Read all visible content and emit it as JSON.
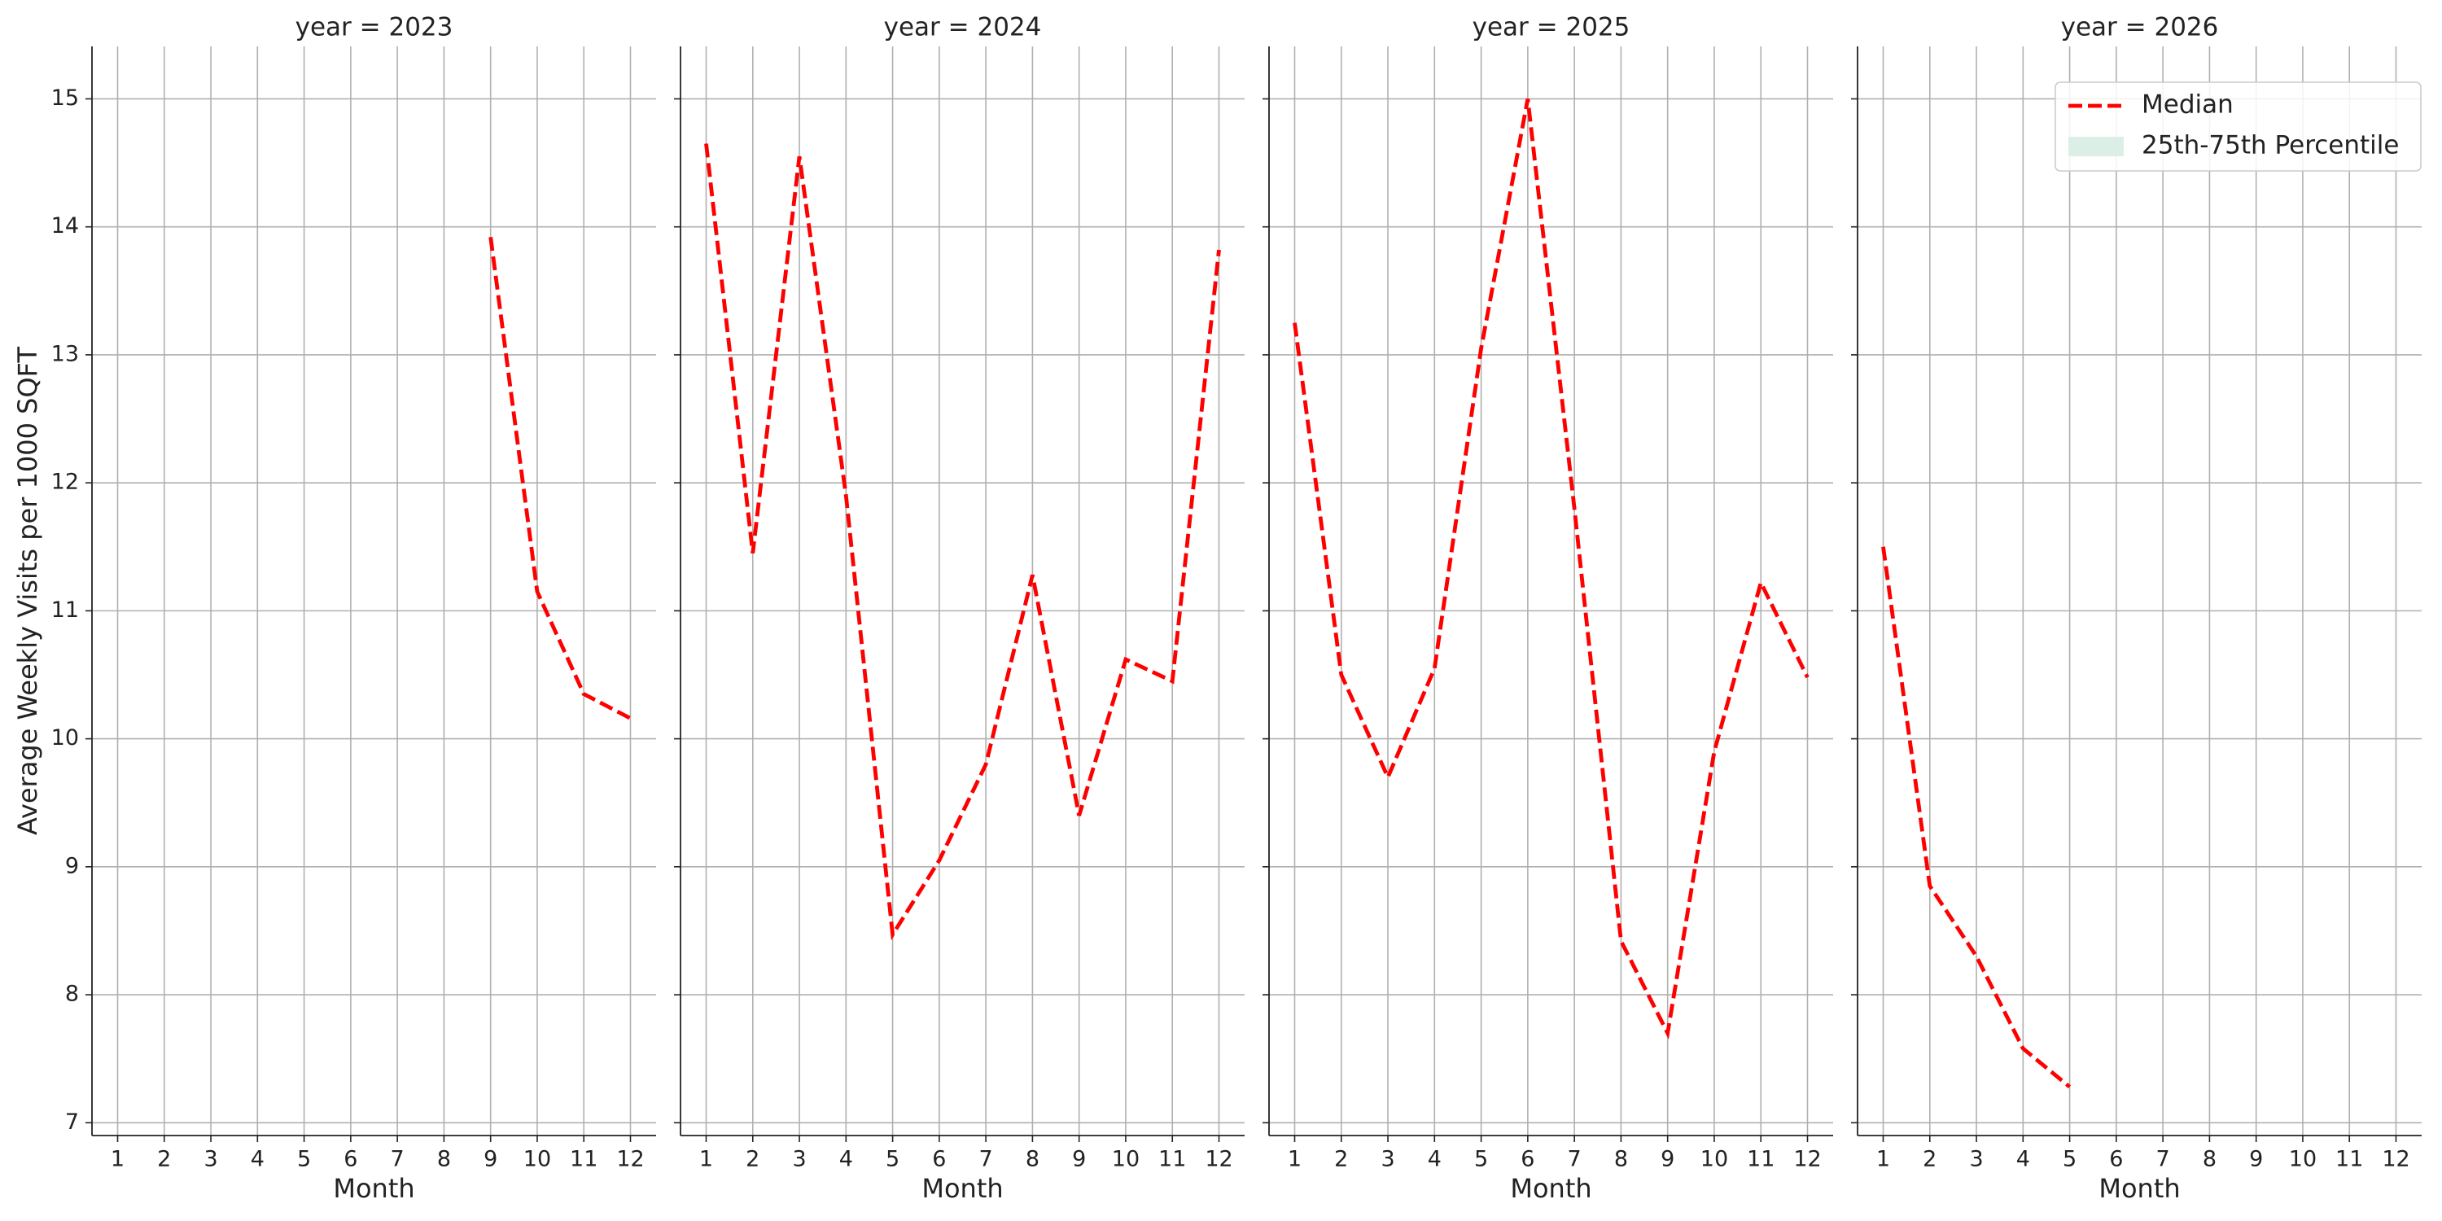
{
  "chart_data": [
    {
      "type": "line",
      "title": "year = 2023",
      "xlabel": "Month",
      "ylabel": "Average Weekly Visits per 1000 SQFT",
      "x": [
        1,
        2,
        3,
        4,
        5,
        6,
        7,
        8,
        9,
        10,
        11,
        12
      ],
      "series": [
        {
          "name": "Median",
          "color": "#ff0000",
          "values": [
            null,
            null,
            null,
            null,
            null,
            null,
            null,
            null,
            13.92,
            11.15,
            10.35,
            10.16
          ]
        }
      ],
      "xlim": [
        0.45,
        12.55
      ],
      "ylim": [
        6.9,
        15.41
      ],
      "xticks": [
        1,
        2,
        3,
        4,
        5,
        6,
        7,
        8,
        9,
        10,
        11,
        12
      ],
      "yticks": [
        7,
        8,
        9,
        10,
        11,
        12,
        13,
        14,
        15
      ],
      "grid": true
    },
    {
      "type": "line",
      "title": "year = 2024",
      "xlabel": "Month",
      "x": [
        1,
        2,
        3,
        4,
        5,
        6,
        7,
        8,
        9,
        10,
        11,
        12
      ],
      "series": [
        {
          "name": "Median",
          "color": "#ff0000",
          "values": [
            14.65,
            11.45,
            14.55,
            11.9,
            8.47,
            9.05,
            9.8,
            11.28,
            9.4,
            10.62,
            10.45,
            13.82
          ]
        }
      ],
      "xlim": [
        0.45,
        12.55
      ],
      "ylim": [
        6.9,
        15.41
      ],
      "xticks": [
        1,
        2,
        3,
        4,
        5,
        6,
        7,
        8,
        9,
        10,
        11,
        12
      ],
      "yticks": [
        7,
        8,
        9,
        10,
        11,
        12,
        13,
        14,
        15
      ],
      "grid": true
    },
    {
      "type": "line",
      "title": "year = 2025",
      "xlabel": "Month",
      "x": [
        1,
        2,
        3,
        4,
        5,
        6,
        7,
        8,
        9,
        10,
        11,
        12
      ],
      "series": [
        {
          "name": "Median",
          "color": "#ff0000",
          "values": [
            13.25,
            10.5,
            9.7,
            10.55,
            13.05,
            15.0,
            11.8,
            8.42,
            7.7,
            9.9,
            11.22,
            10.48
          ]
        }
      ],
      "xlim": [
        0.45,
        12.55
      ],
      "ylim": [
        6.9,
        15.41
      ],
      "xticks": [
        1,
        2,
        3,
        4,
        5,
        6,
        7,
        8,
        9,
        10,
        11,
        12
      ],
      "yticks": [
        7,
        8,
        9,
        10,
        11,
        12,
        13,
        14,
        15
      ],
      "grid": true
    },
    {
      "type": "line",
      "title": "year = 2026",
      "xlabel": "Month",
      "x": [
        1,
        2,
        3,
        4,
        5,
        6,
        7,
        8,
        9,
        10,
        11,
        12
      ],
      "series": [
        {
          "name": "Median",
          "color": "#ff0000",
          "values": [
            11.5,
            8.85,
            8.3,
            7.58,
            7.28,
            null,
            null,
            null,
            null,
            null,
            null,
            null
          ]
        },
        {
          "name": "25th-75th Percentile",
          "color": "#dcefe7",
          "values": [
            null,
            null,
            null,
            null,
            null,
            null,
            null,
            null,
            null,
            null,
            null,
            null
          ]
        }
      ],
      "xlim": [
        0.45,
        12.55
      ],
      "ylim": [
        6.9,
        15.41
      ],
      "xticks": [
        1,
        2,
        3,
        4,
        5,
        6,
        7,
        8,
        9,
        10,
        11,
        12
      ],
      "yticks": [
        7,
        8,
        9,
        10,
        11,
        12,
        13,
        14,
        15
      ],
      "grid": true,
      "legend": "upper right"
    }
  ]
}
